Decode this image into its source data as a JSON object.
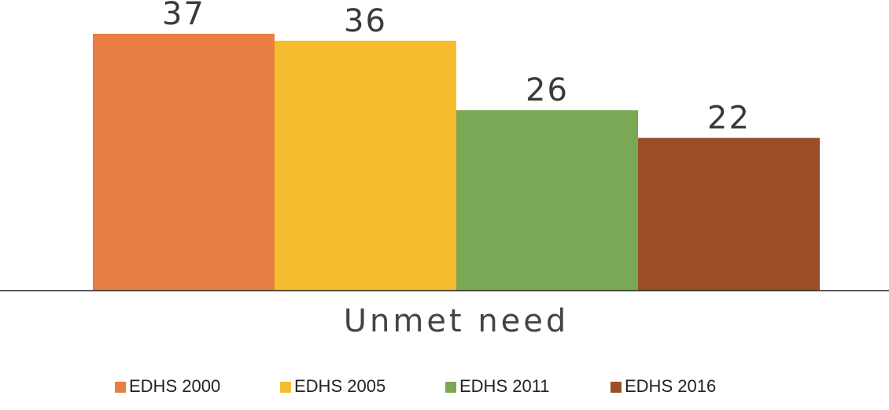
{
  "chart_data": {
    "type": "bar",
    "categories": [
      "Unmet need"
    ],
    "series": [
      {
        "name": "EDHS 2000",
        "values": [
          37
        ],
        "color": "#E87E41"
      },
      {
        "name": "EDHS 2005",
        "values": [
          36
        ],
        "color": "#F5BD2E"
      },
      {
        "name": "EDHS 2011",
        "values": [
          26
        ],
        "color": "#7BA854"
      },
      {
        "name": "EDHS 2016",
        "values": [
          22
        ],
        "color": "#9C4F27"
      }
    ],
    "ylim": [
      0,
      37
    ],
    "grid": false,
    "legend_position": "bottom"
  }
}
